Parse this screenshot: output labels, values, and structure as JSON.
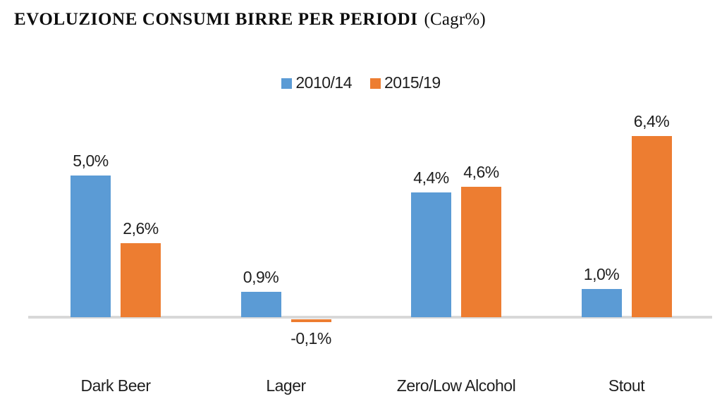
{
  "title": {
    "main": "EVOLUZIONE CONSUMI BIRRE PER PERIODI",
    "suffix": "(Cagr%)"
  },
  "chart_data": {
    "type": "bar",
    "title": "EVOLUZIONE CONSUMI BIRRE PER PERIODI (Cagr%)",
    "categories": [
      "Dark Beer",
      "Lager",
      "Zero/Low Alcohol",
      "Stout"
    ],
    "series": [
      {
        "name": "2010/14",
        "color": "#5B9BD5",
        "values": [
          5.0,
          0.9,
          4.4,
          1.0
        ],
        "labels": [
          "5,0%",
          "0,9%",
          "4,4%",
          "1,0%"
        ]
      },
      {
        "name": "2015/19",
        "color": "#ED7D31",
        "values": [
          2.6,
          -0.1,
          4.6,
          6.4
        ],
        "labels": [
          "2,6%",
          "-0,1%",
          "4,6%",
          "6,4%"
        ]
      }
    ],
    "value_format": "percent, comma decimal separator",
    "data_labels": true,
    "legend_position": "top-center",
    "grid": false,
    "axis_color": "#D8D8D8",
    "baseline": 0
  }
}
